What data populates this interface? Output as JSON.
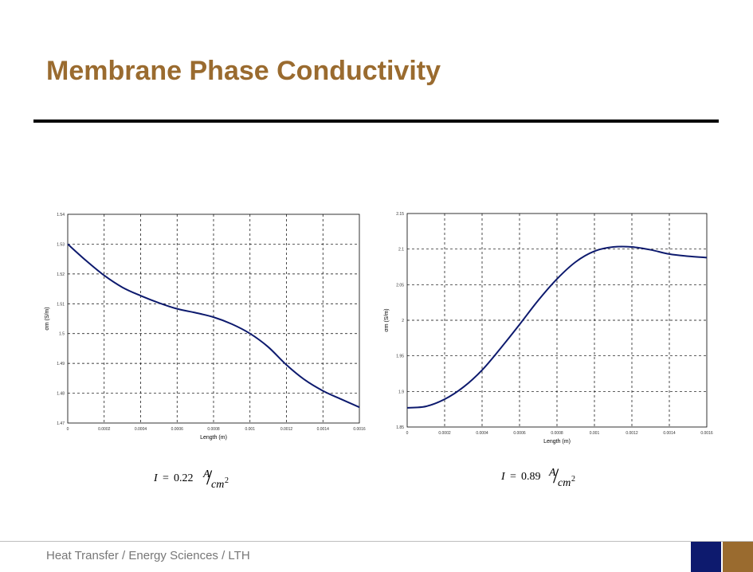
{
  "title": "Membrane Phase Conductivity",
  "footer": "Heat Transfer / Energy Sciences / LTH",
  "colors": {
    "title": "#9a6b2f",
    "line": "#0d1a6e",
    "footer_blue": "#0d1a6e",
    "footer_brown": "#9a6b2f"
  },
  "formulas": [
    {
      "lhs": "I",
      "eq": "=",
      "value": "0.22",
      "num": "A",
      "den": "cm",
      "exp": "2"
    },
    {
      "lhs": "I",
      "eq": "=",
      "value": "0.89",
      "num": "A",
      "den": "cm",
      "exp": "2"
    }
  ],
  "chart_data": [
    {
      "type": "line",
      "xlabel": "Length (m)",
      "ylabel": "σm (S/m)",
      "xlim": [
        0,
        0.0016
      ],
      "ylim": [
        1.47,
        1.54
      ],
      "xticks": [
        "0",
        "0.0002",
        "0.0004",
        "0.0006",
        "0.0008",
        "0.001",
        "0.0012",
        "0.0014",
        "0.0016"
      ],
      "yticks": [
        "1.47",
        "1.48",
        "1.49",
        "1.5",
        "1.51",
        "1.52",
        "1.53",
        "1.54"
      ],
      "grid": true,
      "series": [
        {
          "x": [
            0,
            0.0001,
            0.0002,
            0.0003,
            0.0004,
            0.0005,
            0.0006,
            0.0007,
            0.0008,
            0.0009,
            0.001,
            0.0011,
            0.0012,
            0.0013,
            0.0014,
            0.0015,
            0.0016
          ],
          "y": [
            1.53,
            1.5245,
            1.5195,
            1.5155,
            1.5127,
            1.5103,
            1.5083,
            1.507,
            1.5055,
            1.5032,
            1.5,
            1.4955,
            1.4895,
            1.4845,
            1.4808,
            1.478,
            1.4753
          ]
        }
      ]
    },
    {
      "type": "line",
      "xlabel": "Length (m)",
      "ylabel": "σm (S/m)",
      "xlim": [
        0,
        0.0016
      ],
      "ylim": [
        1.85,
        2.15
      ],
      "xticks": [
        "0",
        "0.0002",
        "0.0004",
        "0.0006",
        "0.0008",
        "0.001",
        "0.0012",
        "0.0014",
        "0.0016"
      ],
      "yticks": [
        "1.85",
        "1.9",
        "1.95",
        "2",
        "2.05",
        "2.1",
        "2.15"
      ],
      "grid": true,
      "series": [
        {
          "x": [
            0,
            0.0001,
            0.0002,
            0.0003,
            0.0004,
            0.0005,
            0.0006,
            0.0007,
            0.0008,
            0.0009,
            0.001,
            0.0011,
            0.0012,
            0.0013,
            0.0014,
            0.0015,
            0.0016
          ],
          "y": [
            1.877,
            1.879,
            1.889,
            1.906,
            1.93,
            1.961,
            1.994,
            2.028,
            2.058,
            2.082,
            2.097,
            2.103,
            2.103,
            2.099,
            2.093,
            2.09,
            2.088
          ]
        }
      ]
    }
  ]
}
